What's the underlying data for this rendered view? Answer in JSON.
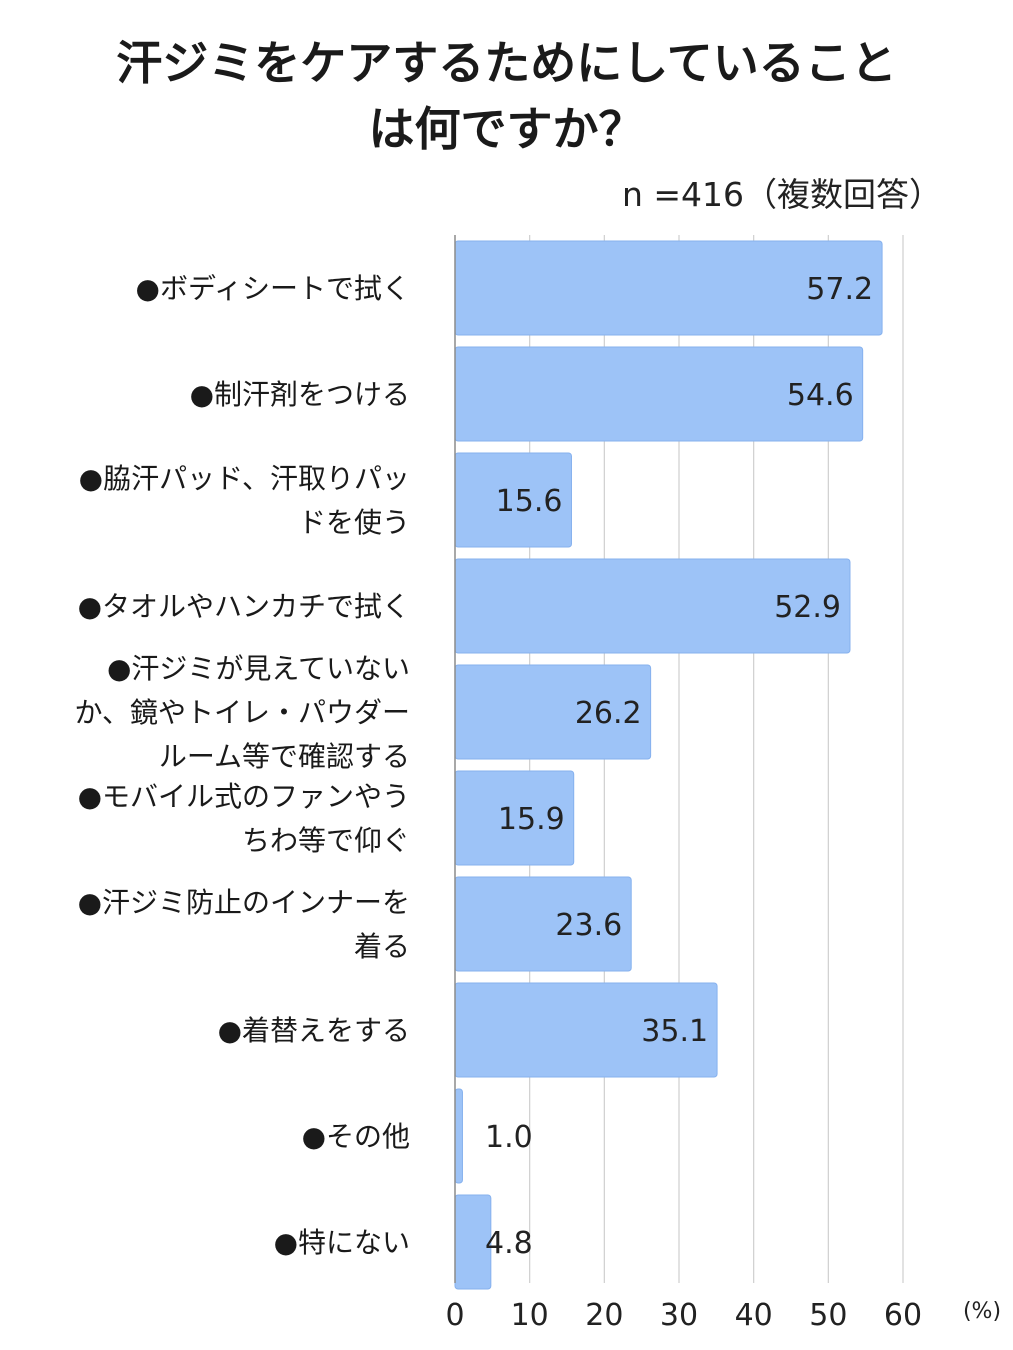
{
  "title_lines": [
    "汗ジミをケアするためにしていること",
    "は何ですか？"
  ],
  "sample_note": "n =416（複数回答）",
  "colors": {
    "bar": "#9dc3f7",
    "bar_edge": "#86b1ee",
    "grid": "#cfcfcf",
    "axis": "#8c8c8c"
  },
  "chart_data": {
    "type": "bar",
    "orientation": "horizontal",
    "title": "汗ジミをケアするためにしていることは何ですか？",
    "subtitle": "n =416（複数回答）",
    "categories": [
      [
        "●ボディシートで拭く"
      ],
      [
        "●制汗剤をつける"
      ],
      [
        "●脇汗パッド、汗取りパッ",
        "ドを使う"
      ],
      [
        "●タオルやハンカチで拭く"
      ],
      [
        "●汗ジミが見えていない",
        "か、鏡やトイレ・パウダー",
        "ルーム等で確認する"
      ],
      [
        "●モバイル式のファンやう",
        "ちわ等で仰ぐ"
      ],
      [
        "●汗ジミ防止のインナーを",
        "着る"
      ],
      [
        "●着替えをする"
      ],
      [
        "●その他"
      ],
      [
        "●特にない"
      ]
    ],
    "values": [
      57.2,
      54.6,
      15.6,
      52.9,
      26.2,
      15.9,
      23.6,
      35.1,
      1.0,
      4.8
    ],
    "value_labels": [
      "57.2",
      "54.6",
      "15.6",
      "52.9",
      "26.2",
      "15.9",
      "23.6",
      "35.1",
      "1.0",
      "4.8"
    ],
    "xlim": [
      0,
      60
    ],
    "xticks": [
      "0",
      "10",
      "20",
      "30",
      "40",
      "50",
      "60"
    ],
    "xunit": "(%)",
    "grid": "vertical",
    "legend": "none"
  }
}
